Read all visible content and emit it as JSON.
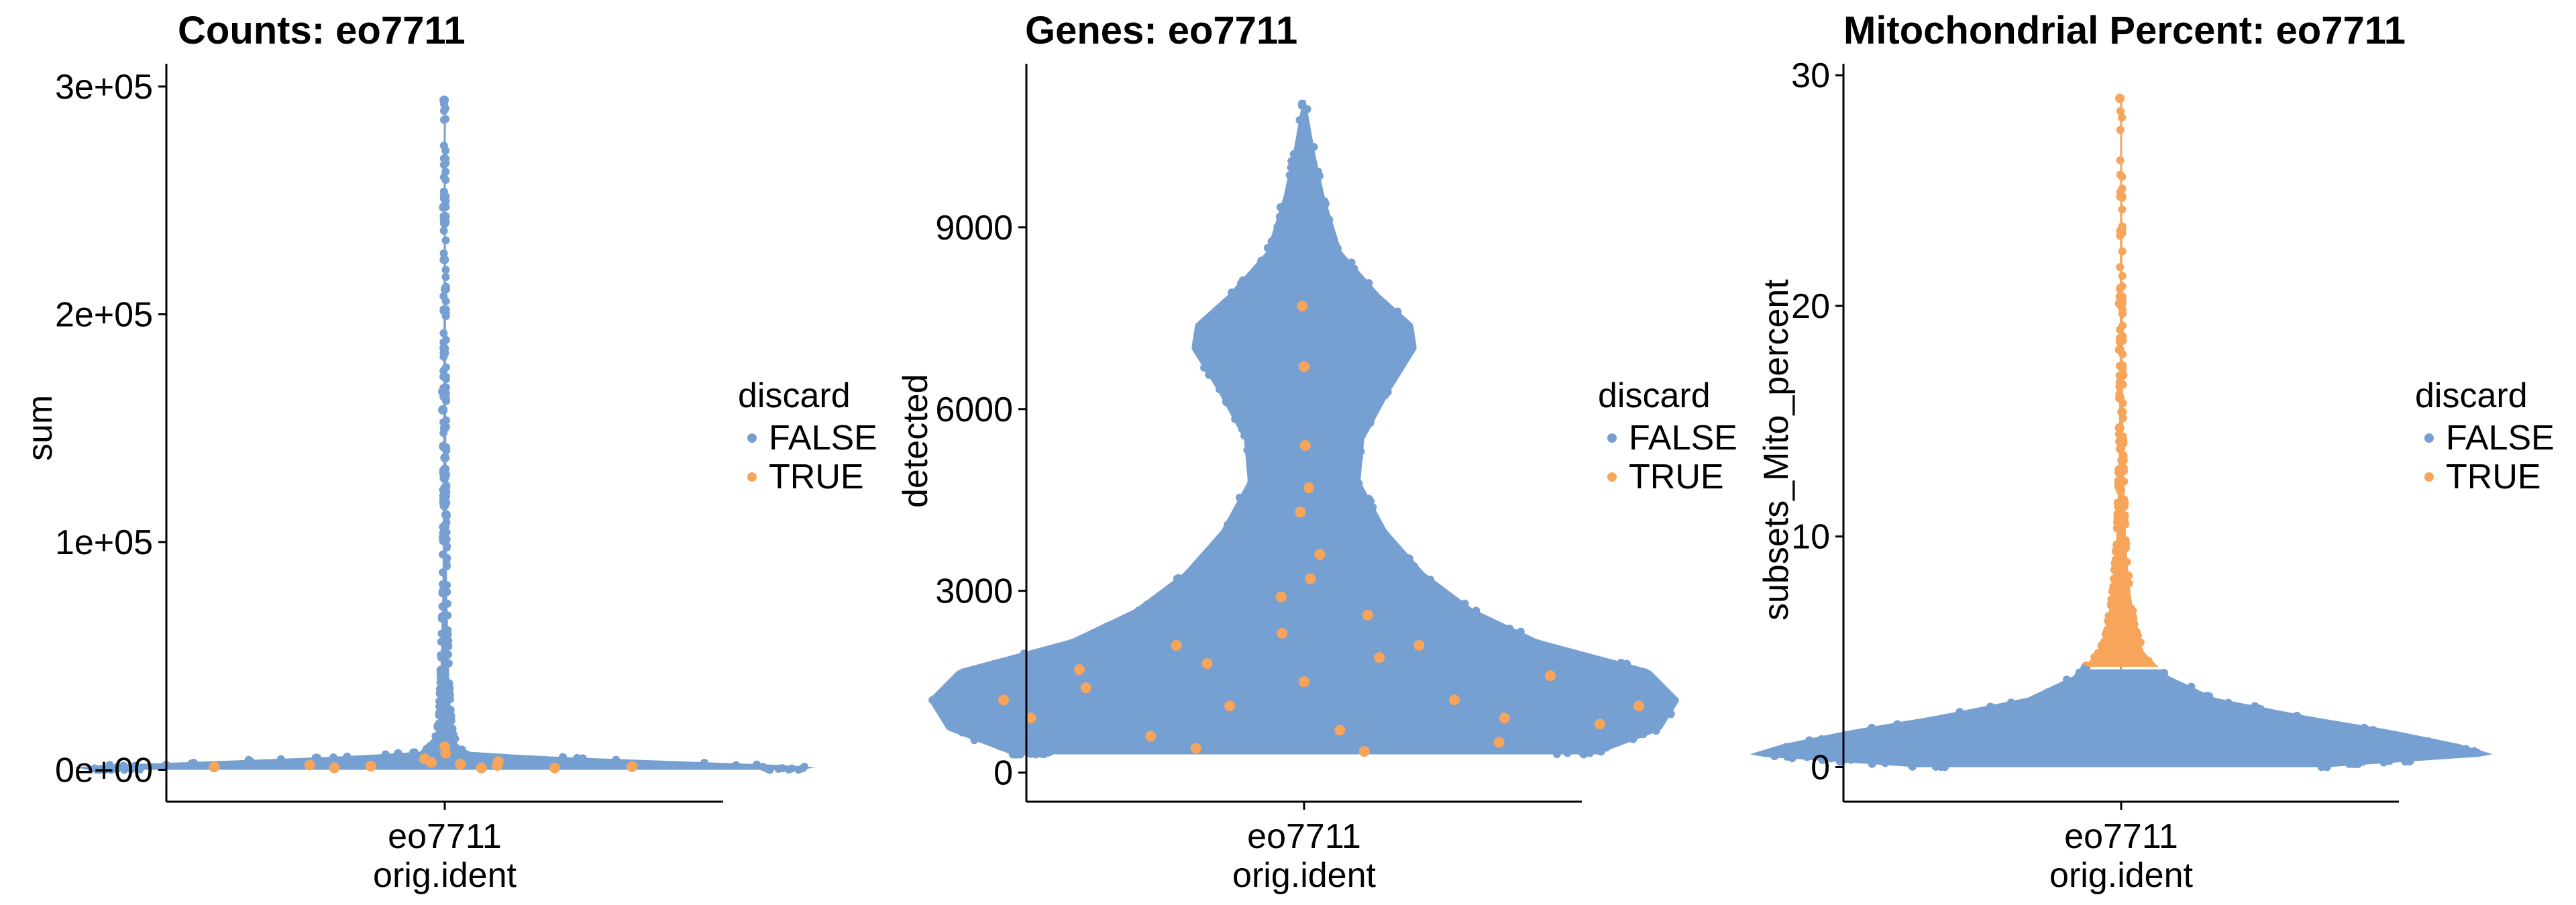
{
  "colors": {
    "false": "#77a0d2",
    "true": "#f7a55a",
    "axis": "#000000",
    "line": "#9a9a9a"
  },
  "legend": {
    "title": "discard",
    "items": [
      "FALSE",
      "TRUE"
    ]
  },
  "chart_data": [
    {
      "type": "violin",
      "title": "Counts: eo7711",
      "xlabel": "orig.ident",
      "ylabel": "sum",
      "categories": [
        "eo7711"
      ],
      "ylim": [
        -14000,
        310000
      ],
      "yticks": [
        0,
        100000,
        200000,
        300000
      ],
      "ytick_labels": [
        "0e+00",
        "1e+05",
        "2e+05",
        "3e+05"
      ],
      "y_max": 294000,
      "density": [
        [
          0,
          0.95
        ],
        [
          1500,
          1.0
        ],
        [
          4000,
          0.58
        ],
        [
          6000,
          0.25
        ],
        [
          8000,
          0.06
        ],
        [
          12000,
          0.03
        ],
        [
          20000,
          0.018
        ],
        [
          40000,
          0.012
        ],
        [
          80000,
          0.006
        ],
        [
          140000,
          0.004
        ],
        [
          294000,
          0.002
        ]
      ],
      "outliers": [
        294000,
        247000,
        240000,
        224000,
        211000,
        185000,
        183000,
        166000,
        158000,
        150000,
        142000,
        137000,
        132000,
        128000,
        124000,
        120000,
        116000,
        112000,
        107000,
        102000
      ],
      "discard_points": [
        [
          -0.62,
          1200
        ],
        [
          -0.4,
          2100
        ],
        [
          -0.2,
          1600
        ],
        [
          0.05,
          2500
        ],
        [
          0.15,
          1900
        ],
        [
          0.3,
          800
        ],
        [
          0.5,
          1400
        ],
        [
          -0.05,
          3200
        ],
        [
          0.22,
          3600
        ],
        [
          -0.3,
          900
        ],
        [
          0.1,
          800
        ],
        [
          -0.12,
          4800
        ],
        [
          0.0,
          10200
        ],
        [
          0.02,
          7300
        ]
      ],
      "legend": {
        "title": "discard",
        "entries": [
          "FALSE",
          "TRUE"
        ]
      }
    },
    {
      "type": "violin",
      "title": "Genes: eo7711",
      "xlabel": "orig.ident",
      "ylabel": "detected",
      "categories": [
        "eo7711"
      ],
      "ylim": [
        -480,
        11700
      ],
      "yticks": [
        0,
        3000,
        6000,
        9000
      ],
      "ytick_labels": [
        "0",
        "3000",
        "6000",
        "9000"
      ],
      "y_max": 11100,
      "density": [
        [
          300,
          0.78
        ],
        [
          700,
          0.95
        ],
        [
          1200,
          1.0
        ],
        [
          1700,
          0.92
        ],
        [
          2200,
          0.62
        ],
        [
          2700,
          0.45
        ],
        [
          3300,
          0.32
        ],
        [
          4000,
          0.22
        ],
        [
          4800,
          0.15
        ],
        [
          5500,
          0.16
        ],
        [
          6300,
          0.23
        ],
        [
          7000,
          0.3
        ],
        [
          7400,
          0.29
        ],
        [
          7900,
          0.2
        ],
        [
          8600,
          0.1
        ],
        [
          9500,
          0.055
        ],
        [
          10200,
          0.03
        ],
        [
          11100,
          0.004
        ]
      ],
      "discard_points": [
        [
          -0.75,
          900
        ],
        [
          -0.6,
          1400
        ],
        [
          -0.45,
          600
        ],
        [
          -0.3,
          1800
        ],
        [
          -0.2,
          1100
        ],
        [
          -0.1,
          2300
        ],
        [
          0.0,
          1500
        ],
        [
          0.1,
          700
        ],
        [
          0.25,
          1900
        ],
        [
          0.4,
          1200
        ],
        [
          0.55,
          900
        ],
        [
          0.7,
          1600
        ],
        [
          0.82,
          800
        ],
        [
          -0.5,
          2100
        ],
        [
          0.35,
          2600
        ],
        [
          -0.15,
          2900
        ],
        [
          0.05,
          3200
        ],
        [
          0.15,
          3600
        ],
        [
          -0.05,
          4300
        ],
        [
          0.08,
          4700
        ],
        [
          0.02,
          5400
        ],
        [
          0.0,
          6700
        ],
        [
          -0.02,
          7700
        ],
        [
          0.6,
          500
        ],
        [
          -0.8,
          1200
        ],
        [
          0.9,
          1100
        ],
        [
          -0.35,
          400
        ],
        [
          0.2,
          350
        ],
        [
          -0.65,
          1700
        ],
        [
          0.45,
          2100
        ]
      ],
      "legend": {
        "title": "discard",
        "entries": [
          "FALSE",
          "TRUE"
        ]
      }
    },
    {
      "type": "violin",
      "title": "Mitochondrial Percent: eo7711",
      "xlabel": "orig.ident",
      "ylabel": "subsets_Mito_percent",
      "categories": [
        "eo7711"
      ],
      "ylim": [
        -1.5,
        30.5
      ],
      "yticks": [
        0,
        10,
        20,
        30
      ],
      "ytick_labels": [
        "0",
        "10",
        "20",
        "30"
      ],
      "y_max": 29,
      "density": [
        [
          0,
          0.55
        ],
        [
          0.5,
          1.0
        ],
        [
          1.0,
          0.9
        ],
        [
          1.6,
          0.72
        ],
        [
          2.2,
          0.5
        ],
        [
          3.0,
          0.25
        ],
        [
          4.0,
          0.12
        ],
        [
          5.0,
          0.06
        ],
        [
          6.0,
          0.04
        ],
        [
          7.5,
          0.025
        ],
        [
          9.0,
          0.016
        ],
        [
          11,
          0.01
        ],
        [
          14,
          0.006
        ],
        [
          18,
          0.004
        ],
        [
          29,
          0.002
        ]
      ],
      "discard_threshold": 4.3,
      "outliers": [
        29,
        20.4,
        20.1,
        18.1,
        17.0,
        16.6,
        16.0,
        15.4,
        14.7,
        14.2,
        13.8,
        13.3,
        12.9,
        12.4,
        12.0,
        11.6,
        11.2
      ],
      "legend": {
        "title": "discard",
        "entries": [
          "FALSE",
          "TRUE"
        ]
      }
    }
  ]
}
